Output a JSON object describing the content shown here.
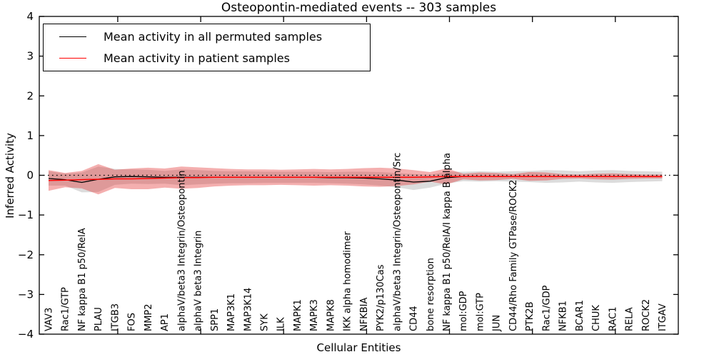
{
  "chart_data": {
    "type": "line",
    "title": "Osteopontin-mediated events -- 303 samples",
    "xlabel": "Cellular Entities",
    "ylabel": "Inferred Activity",
    "ylim": [
      -4,
      4
    ],
    "yticks": [
      4,
      3,
      2,
      1,
      0,
      -1,
      -2,
      -3,
      -4
    ],
    "grid": false,
    "legend_position": "upper left",
    "zero_line": {
      "style": "dotted",
      "color": "#000000",
      "y": 0
    },
    "categories": [
      "VAV3",
      "Rac1/GTP",
      "NF kappa B1 p50/RelA",
      "PLAU",
      "ITGB3",
      "FOS",
      "MMP2",
      "AP1",
      "alphaV/beta3 Integrin/Osteopontin",
      "alphaV beta3 Integrin",
      "SPP1",
      "MAP3K1",
      "MAP3K14",
      "SYK",
      "ILK",
      "MAPK1",
      "MAPK3",
      "MAPK8",
      "IKK alpha homodimer",
      "NFKBIA",
      "PYK2/p130Cas",
      "alphaV/beta3 Integrin/Osteopontin/Src",
      "CD44",
      "bone resorption",
      "NF kappa B1 p50/RelA/I kappa B alpha",
      "mol:GDP",
      "mol:GTP",
      "JUN",
      "CD44/Rho Family GTPase/ROCK2",
      "PTK2B",
      "Rac1/GDP",
      "NFKB1",
      "BCAR1",
      "CHUK",
      "RAC1",
      "RELA",
      "ROCK2",
      "ITGAV"
    ],
    "series": [
      {
        "name": "Mean activity in all permuted samples",
        "color": "#000000",
        "band_color": "rgba(130,130,130,0.28)",
        "values": [
          -0.08,
          -0.11,
          -0.18,
          -0.1,
          -0.04,
          -0.03,
          -0.04,
          -0.05,
          -0.05,
          -0.05,
          -0.05,
          -0.05,
          -0.05,
          -0.05,
          -0.05,
          -0.05,
          -0.05,
          -0.06,
          -0.06,
          -0.07,
          -0.09,
          -0.12,
          -0.17,
          -0.15,
          -0.06,
          -0.03,
          -0.03,
          -0.03,
          -0.03,
          -0.03,
          -0.03,
          -0.03,
          -0.03,
          -0.03,
          -0.03,
          -0.03,
          -0.03,
          -0.03
        ],
        "band_halfwidth": [
          0.18,
          0.15,
          0.25,
          0.32,
          0.2,
          0.18,
          0.18,
          0.16,
          0.2,
          0.18,
          0.16,
          0.15,
          0.15,
          0.14,
          0.14,
          0.14,
          0.14,
          0.14,
          0.15,
          0.16,
          0.17,
          0.18,
          0.2,
          0.16,
          0.15,
          0.12,
          0.13,
          0.12,
          0.13,
          0.14,
          0.16,
          0.15,
          0.13,
          0.15,
          0.16,
          0.14,
          0.13,
          0.12
        ]
      },
      {
        "name": "Mean activity in patient samples",
        "color": "#ff0000",
        "band_color": "rgba(225,45,45,0.38)",
        "values": [
          -0.13,
          -0.12,
          -0.11,
          -0.1,
          -0.09,
          -0.09,
          -0.08,
          -0.07,
          -0.06,
          -0.06,
          -0.05,
          -0.05,
          -0.05,
          -0.05,
          -0.05,
          -0.05,
          -0.05,
          -0.05,
          -0.05,
          -0.05,
          -0.05,
          -0.05,
          -0.05,
          -0.04,
          -0.03,
          -0.03,
          -0.03,
          -0.03,
          -0.03,
          -0.03,
          -0.03,
          -0.03,
          -0.03,
          -0.03,
          -0.03,
          -0.03,
          -0.03,
          -0.03
        ],
        "band_halfwidth": [
          0.26,
          0.18,
          0.22,
          0.38,
          0.23,
          0.26,
          0.27,
          0.24,
          0.28,
          0.26,
          0.23,
          0.21,
          0.2,
          0.2,
          0.19,
          0.2,
          0.21,
          0.2,
          0.21,
          0.23,
          0.24,
          0.22,
          0.18,
          0.12,
          0.2,
          0.07,
          0.1,
          0.09,
          0.06,
          0.11,
          0.1,
          0.06,
          0.05,
          0.07,
          0.08,
          0.06,
          0.05,
          0.05
        ]
      }
    ]
  }
}
